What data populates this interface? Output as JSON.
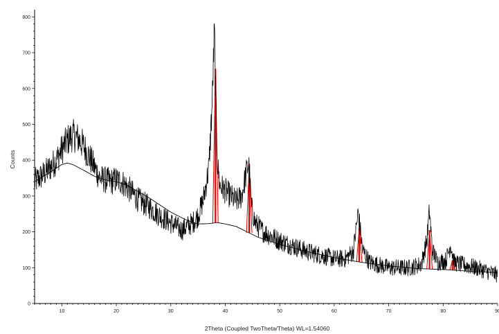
{
  "chart_data": {
    "type": "line",
    "xlabel": "2Theta (Coupled TwoTheta/Theta) WL=1.54060",
    "ylabel": "Counts",
    "xlim": [
      5,
      90
    ],
    "ylim": [
      0,
      820
    ],
    "x_ticks": [
      10,
      20,
      30,
      40,
      50,
      60,
      70,
      80,
      90
    ],
    "y_ticks": [
      0,
      100,
      200,
      300,
      400,
      500,
      600,
      700,
      800
    ],
    "grid": false,
    "legend": "none",
    "colors": {
      "pattern": "#000000",
      "peaks": "#e00000",
      "background": "#000000"
    },
    "series": [
      {
        "role": "measured-pattern",
        "x": [
          5,
          7,
          9,
          10,
          11,
          12,
          13,
          14,
          15,
          17,
          19,
          20,
          21,
          22,
          24,
          26,
          28,
          30,
          32,
          33,
          34,
          35,
          36,
          37,
          37.6,
          38.0,
          38.2,
          38.5,
          39,
          40,
          41,
          42,
          43,
          43.8,
          44.3,
          44.8,
          45.5,
          47,
          50,
          55,
          60,
          62,
          63.5,
          64.4,
          65.2,
          66.5,
          70,
          74,
          76,
          77.0,
          77.5,
          78.0,
          79,
          80.5,
          81.4,
          82.0,
          83,
          86,
          88,
          90
        ],
        "y": [
          340,
          365,
          400,
          430,
          455,
          470,
          460,
          440,
          410,
          350,
          340,
          345,
          340,
          325,
          290,
          270,
          245,
          225,
          205,
          215,
          225,
          245,
          290,
          380,
          560,
          760,
          620,
          400,
          330,
          315,
          300,
          285,
          300,
          360,
          395,
          270,
          225,
          200,
          175,
          145,
          125,
          125,
          145,
          255,
          150,
          115,
          100,
          100,
          110,
          175,
          260,
          150,
          115,
          120,
          165,
          115,
          110,
          100,
          90,
          80
        ]
      },
      {
        "role": "background",
        "x": [
          5,
          8,
          10,
          11,
          12,
          14,
          16,
          18,
          20,
          22,
          26,
          30,
          33,
          35,
          37,
          38.5,
          40,
          42,
          44,
          46,
          50,
          55,
          60,
          65,
          70,
          75,
          78,
          80,
          85,
          90
        ],
        "y": [
          340,
          368,
          388,
          392,
          388,
          372,
          355,
          345,
          340,
          330,
          295,
          255,
          232,
          222,
          223,
          226,
          222,
          215,
          200,
          185,
          165,
          145,
          128,
          115,
          105,
          98,
          96,
          95,
          90,
          86
        ]
      }
    ],
    "peaks": [
      {
        "x": 38.2,
        "y": 655
      },
      {
        "x": 44.4,
        "y": 390
      },
      {
        "x": 64.6,
        "y": 210
      },
      {
        "x": 77.5,
        "y": 205
      },
      {
        "x": 81.7,
        "y": 120
      }
    ]
  }
}
